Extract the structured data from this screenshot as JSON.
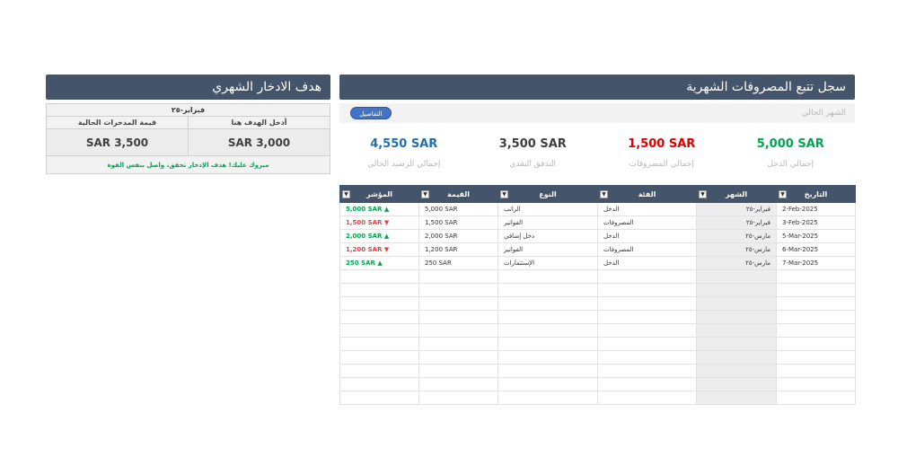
{
  "tracker": {
    "title": "سجل تتبع المصروفات الشهرية",
    "month_label": "الشهر الحالي",
    "details_button": "التفاصيل",
    "kpis": [
      {
        "value": "5,000 SAR",
        "label": "إجمالي الدخل",
        "color": "#00a651"
      },
      {
        "value": "1,500 SAR",
        "label": "إجمالي المصروفات",
        "color": "#e00000"
      },
      {
        "value": "3,500 SAR",
        "label": "التدفق النقدي",
        "color": "#404040"
      },
      {
        "value": "4,550 SAR",
        "label": "إجمالي الرصيد الحالي",
        "color": "#1f6fb2"
      }
    ],
    "columns": [
      "التاريخ",
      "الشهر",
      "الفئة",
      "النوع",
      "القيمة",
      "المؤشر"
    ],
    "rows": [
      {
        "date": "2-Feb-2025",
        "month": "فبراير-٢٥",
        "category": "الدخل",
        "type": "الراتب",
        "amount": "5,000 SAR",
        "indicator": "5,000 SAR",
        "dir": "up",
        "arrow": "▲"
      },
      {
        "date": "3-Feb-2025",
        "month": "فبراير-٢٥",
        "category": "المصروفات",
        "type": "الفواتير",
        "amount": "1,500 SAR",
        "indicator": "1,500 SAR",
        "dir": "dn",
        "arrow": "▼"
      },
      {
        "date": "5-Mar-2025",
        "month": "مارس-٢٥",
        "category": "الدخل",
        "type": "دخل إضافي",
        "amount": "2,000 SAR",
        "indicator": "2,000 SAR",
        "dir": "up",
        "arrow": "▲"
      },
      {
        "date": "6-Mar-2025",
        "month": "مارس-٢٥",
        "category": "المصروفات",
        "type": "الفواتير",
        "amount": "1,200 SAR",
        "indicator": "1,200 SAR",
        "dir": "dn",
        "arrow": "▼"
      },
      {
        "date": "7-Mar-2025",
        "month": "مارس-٢٥",
        "category": "الدخل",
        "type": "الإستثمارات",
        "amount": "250 SAR",
        "indicator": "250 SAR",
        "dir": "up",
        "arrow": "▲"
      }
    ],
    "empty_rows": 10
  },
  "goal": {
    "title": "هدف الادخار الشهري",
    "month": "فبراير-٢٥",
    "target_label": "أدخل الهدف هنا",
    "current_label": "قيمة المدخرات الحالية",
    "target_value": "3,000 SAR",
    "current_value": "3,500 SAR",
    "message": "مبروك عليك! هدف الإدخار تحقق، واصل بنفس القوة"
  }
}
